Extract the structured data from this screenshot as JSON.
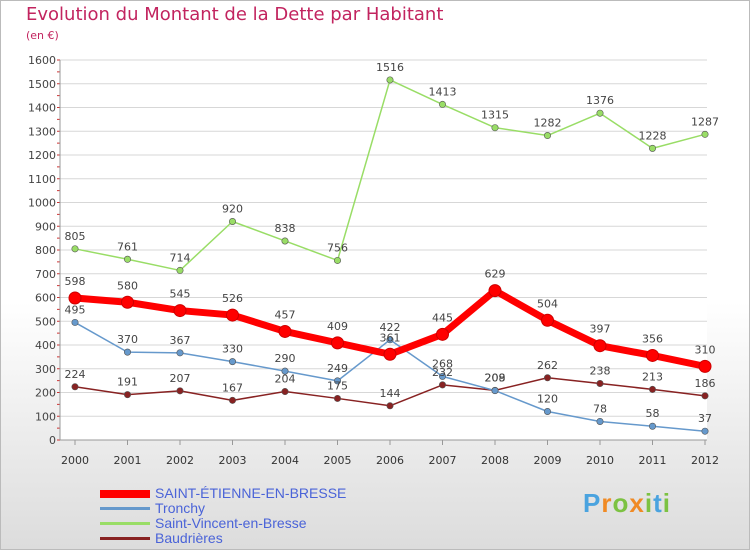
{
  "header": {
    "title": "Evolution du Montant de la Dette par Habitant",
    "unit": "(en €)"
  },
  "logo": {
    "text": "Proxiti"
  },
  "chart_data": {
    "type": "line",
    "title": "Evolution du Montant de la Dette par Habitant",
    "subtitle": "(en €)",
    "xlabel": "",
    "ylabel": "",
    "x": [
      "2000",
      "2001",
      "2002",
      "2003",
      "2004",
      "2005",
      "2006",
      "2007",
      "2008",
      "2009",
      "2010",
      "2011",
      "2012"
    ],
    "ylim": [
      0,
      1600
    ],
    "yticks": [
      0,
      100,
      200,
      300,
      400,
      500,
      600,
      700,
      800,
      900,
      1000,
      1100,
      1200,
      1300,
      1400,
      1500,
      1600
    ],
    "grid": true,
    "legend_position": "bottom-left",
    "series": [
      {
        "name": "SAINT-ÉTIENNE-EN-BRESSE",
        "color": "#ff0000",
        "width": 7,
        "marker": 6,
        "values": [
          598,
          580,
          545,
          526,
          457,
          409,
          361,
          445,
          629,
          504,
          397,
          356,
          310
        ]
      },
      {
        "name": "Tronchy",
        "color": "#6699cc",
        "width": 1.5,
        "marker": 3.2,
        "values": [
          495,
          370,
          367,
          330,
          290,
          249,
          422,
          268,
          208,
          120,
          78,
          58,
          37
        ]
      },
      {
        "name": "Saint-Vincent-en-Bresse",
        "color": "#99dd66",
        "width": 1.5,
        "marker": 3.2,
        "values": [
          805,
          761,
          714,
          920,
          838,
          756,
          1516,
          1413,
          1315,
          1282,
          1376,
          1228,
          1287
        ]
      },
      {
        "name": "Baudrières",
        "color": "#882222",
        "width": 1.5,
        "marker": 3.2,
        "values": [
          224,
          191,
          207,
          167,
          204,
          175,
          144,
          232,
          209,
          262,
          238,
          213,
          186
        ]
      }
    ]
  }
}
